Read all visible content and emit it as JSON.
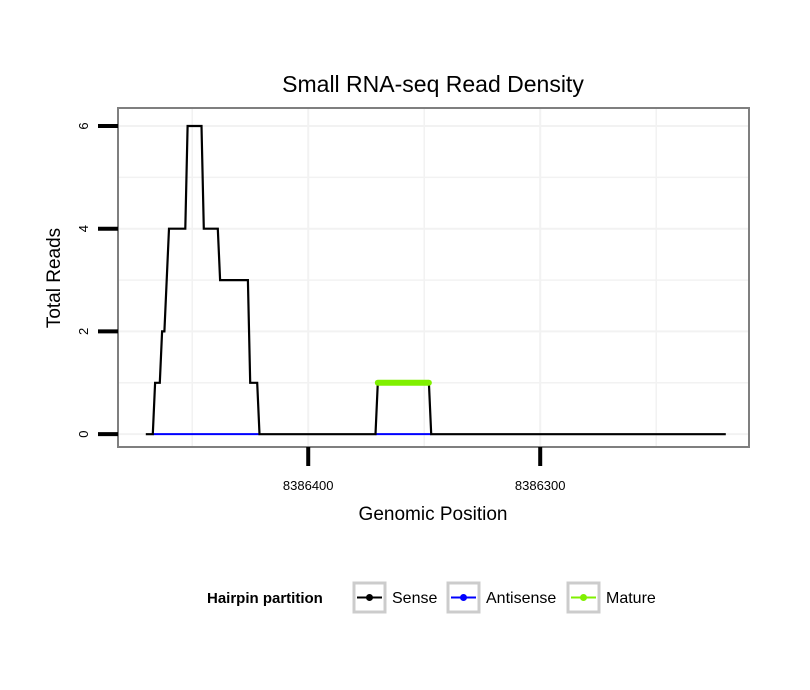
{
  "chart_data": {
    "type": "line",
    "title": "Small RNA-seq Read Density",
    "xlabel": "Genomic Position",
    "ylabel": "Total Reads",
    "x_reversed": true,
    "xlim": [
      8386482,
      8386210
    ],
    "ylim": [
      -0.25,
      6.35
    ],
    "x_ticks": [
      8386400,
      8386300
    ],
    "x_tick_labels": [
      "8386400",
      "8386300"
    ],
    "y_ticks": [
      0,
      2,
      4,
      6
    ],
    "y_tick_labels": [
      "0",
      "2",
      "4",
      "6"
    ],
    "legend": {
      "title": "Hairpin partition",
      "position": "bottom",
      "entries": [
        "Sense",
        "Antisense",
        "Mature"
      ]
    },
    "series": [
      {
        "name": "Sense",
        "color": "#000000",
        "x": [
          8386470,
          8386467,
          8386466,
          8386464,
          8386463,
          8386462,
          8386460,
          8386459,
          8386453,
          8386452,
          8386450,
          8386446,
          8386445,
          8386439,
          8386438,
          8386437,
          8386436,
          8386426,
          8386425,
          8386422,
          8386421,
          8386415,
          8386371,
          8386370,
          8386348,
          8386347,
          8386220
        ],
        "y": [
          0,
          0,
          1,
          1,
          2,
          2,
          4,
          4,
          4,
          6,
          6,
          6,
          4,
          4,
          3,
          3,
          3,
          3,
          1,
          1,
          0,
          0,
          0,
          1,
          1,
          0,
          0
        ]
      },
      {
        "name": "Antisense",
        "color": "#0000ff",
        "segments": [
          [
            8386467,
            8386421
          ],
          [
            8386371,
            8386347
          ]
        ],
        "y": [
          0,
          0
        ]
      },
      {
        "name": "Mature",
        "color": "#80f000",
        "x": [
          8386370,
          8386348
        ],
        "y": [
          1,
          1
        ]
      }
    ]
  }
}
